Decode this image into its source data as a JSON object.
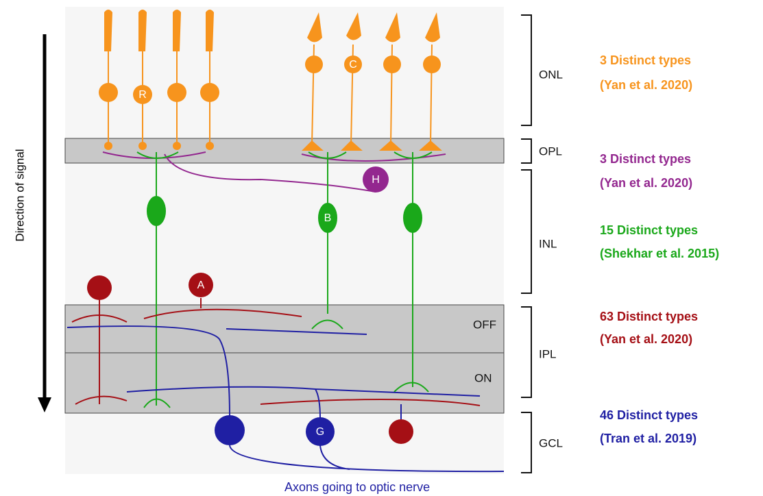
{
  "arrow_label": "Direction of signal",
  "layers": [
    {
      "label": "ONL"
    },
    {
      "label": "OPL"
    },
    {
      "label": "INL"
    },
    {
      "label": "IPL"
    },
    {
      "label": "GCL"
    }
  ],
  "sublayers": [
    "OFF",
    "ON"
  ],
  "cells": [
    "R",
    "C",
    "H",
    "B",
    "A",
    "G"
  ],
  "annotations": [
    {
      "line1": "3 Distinct types",
      "line2": "(Yan et al. 2020)"
    },
    {
      "line1": "3 Distinct types",
      "line2": "(Yan et al. 2020)"
    },
    {
      "line1": "15 Distinct types",
      "line2": "(Shekhar et al. 2015)"
    },
    {
      "line1": "63 Distinct types",
      "line2": "(Yan et al. 2020)"
    },
    {
      "line1": "46 Distinct types",
      "line2": "(Tran et al. 2019)"
    }
  ],
  "footer": "Axons going to optic nerve"
}
